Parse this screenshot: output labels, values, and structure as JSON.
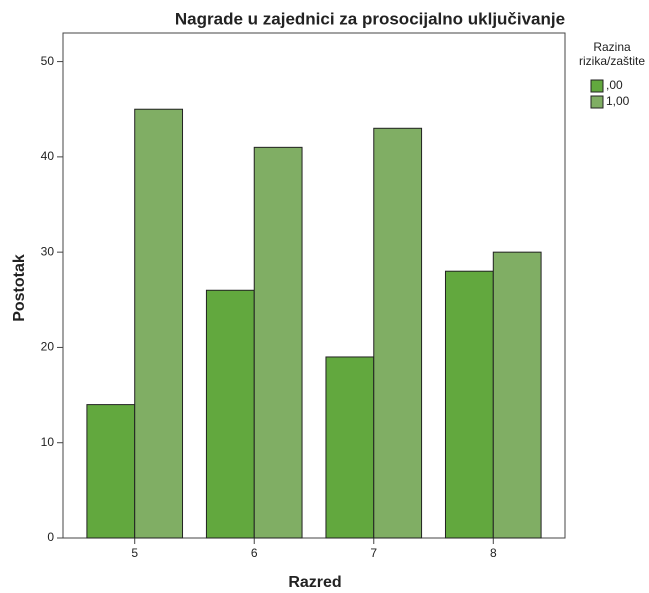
{
  "chart_data": {
    "type": "bar",
    "title": "Nagrade u zajednici za prosocijalno uključivanje",
    "x_label": "Razred",
    "y_label": "Postotak",
    "legend_title": [
      "Razina",
      "rizika/zaštite"
    ],
    "legend_position": "right",
    "categories": [
      "5",
      "6",
      "7",
      "8"
    ],
    "series": [
      {
        "name": ",00",
        "color": "#62a83e",
        "values": [
          14,
          26,
          19,
          28
        ]
      },
      {
        "name": "1,00",
        "color": "#80ae64",
        "values": [
          45,
          41,
          43,
          30
        ]
      }
    ],
    "ylim": [
      0,
      53
    ],
    "yticks": [
      0,
      10,
      20,
      30,
      40,
      50
    ],
    "grid": false
  }
}
